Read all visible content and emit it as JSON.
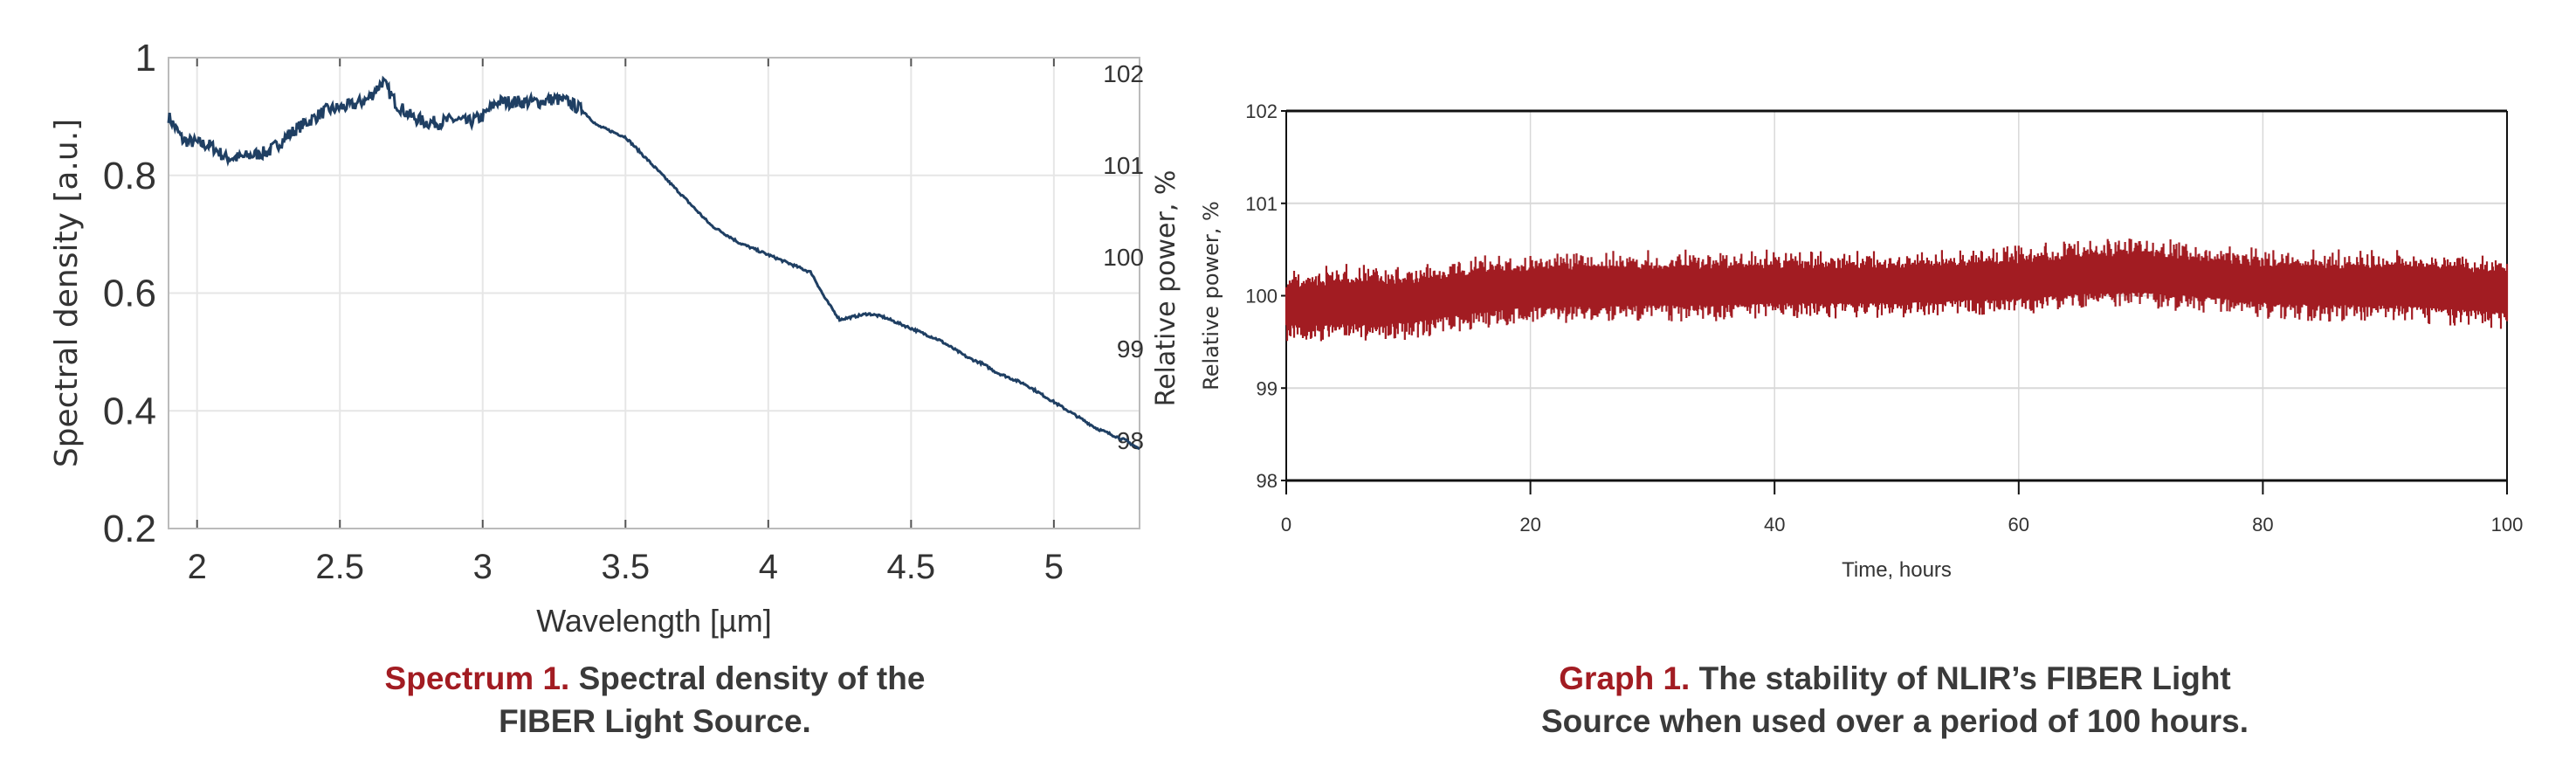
{
  "chart_data": [
    {
      "type": "line",
      "xlabel": "Wavelength [µm]",
      "ylabel": "Spectral density [a.u.]",
      "xlim": [
        1.9,
        5.3
      ],
      "ylim": [
        0.2,
        1.0
      ],
      "xticks": [
        "2",
        "2.5",
        "3",
        "3.5",
        "4",
        "4.5",
        "5"
      ],
      "yticks": [
        "0.2",
        "0.4",
        "0.6",
        "0.8",
        "1"
      ],
      "grid": true,
      "line_color": "#1f3f63",
      "ghost_right_ticks": [
        "102",
        "101",
        "100",
        "99",
        "98"
      ],
      "ghost_right_label": "Relative power, %",
      "x": [
        1.9,
        1.95,
        2.0,
        2.05,
        2.1,
        2.15,
        2.2,
        2.25,
        2.3,
        2.35,
        2.4,
        2.45,
        2.5,
        2.55,
        2.6,
        2.65,
        2.7,
        2.75,
        2.8,
        2.85,
        2.9,
        2.95,
        3.0,
        3.05,
        3.1,
        3.15,
        3.2,
        3.25,
        3.3,
        3.35,
        3.4,
        3.45,
        3.5,
        3.55,
        3.6,
        3.65,
        3.7,
        3.75,
        3.8,
        3.85,
        3.9,
        3.95,
        4.0,
        4.05,
        4.1,
        4.15,
        4.2,
        4.25,
        4.3,
        4.35,
        4.4,
        4.45,
        4.5,
        4.55,
        4.6,
        4.65,
        4.7,
        4.75,
        4.8,
        4.85,
        4.9,
        4.95,
        5.0,
        5.05,
        5.1,
        5.15,
        5.2,
        5.25,
        5.3
      ],
      "y": [
        0.9,
        0.86,
        0.855,
        0.85,
        0.83,
        0.83,
        0.835,
        0.84,
        0.86,
        0.88,
        0.895,
        0.91,
        0.915,
        0.92,
        0.93,
        0.96,
        0.92,
        0.9,
        0.89,
        0.89,
        0.895,
        0.89,
        0.9,
        0.925,
        0.925,
        0.925,
        0.925,
        0.93,
        0.925,
        0.91,
        0.885,
        0.875,
        0.865,
        0.84,
        0.815,
        0.79,
        0.765,
        0.74,
        0.715,
        0.7,
        0.685,
        0.675,
        0.665,
        0.655,
        0.645,
        0.635,
        0.59,
        0.555,
        0.56,
        0.565,
        0.56,
        0.55,
        0.54,
        0.53,
        0.52,
        0.505,
        0.49,
        0.48,
        0.465,
        0.455,
        0.445,
        0.43,
        0.415,
        0.4,
        0.385,
        0.37,
        0.36,
        0.35,
        0.335
      ],
      "caption_lead": "Spectrum 1.",
      "caption_line1": "Spectral density of the",
      "caption_line2": "FIBER Light Source."
    },
    {
      "type": "area",
      "xlabel": "Time, hours",
      "ylabel": "Relative power, %",
      "xlim": [
        0,
        100
      ],
      "ylim": [
        98,
        102
      ],
      "xticks": [
        "0",
        "20",
        "40",
        "60",
        "80",
        "100"
      ],
      "yticks": [
        "98",
        "99",
        "100",
        "101",
        "102"
      ],
      "grid": true,
      "band_color": "#a21c22",
      "x": [
        0,
        5,
        10,
        15,
        20,
        25,
        30,
        35,
        40,
        45,
        50,
        55,
        60,
        65,
        70,
        75,
        80,
        85,
        90,
        95,
        100
      ],
      "upper": [
        100.3,
        100.35,
        100.35,
        100.45,
        100.48,
        100.5,
        100.5,
        100.5,
        100.5,
        100.5,
        100.5,
        100.52,
        100.55,
        100.62,
        100.65,
        100.58,
        100.52,
        100.5,
        100.52,
        100.48,
        100.45
      ],
      "lower": [
        99.5,
        99.5,
        99.52,
        99.62,
        99.7,
        99.7,
        99.72,
        99.72,
        99.75,
        99.75,
        99.75,
        99.78,
        99.8,
        99.84,
        99.86,
        99.82,
        99.75,
        99.72,
        99.72,
        99.68,
        99.63
      ],
      "caption_lead": "Graph 1.",
      "caption_line1": "The stability of NLIR’s FIBER Light",
      "caption_line2": "Source when used over a period of 100 hours."
    }
  ]
}
